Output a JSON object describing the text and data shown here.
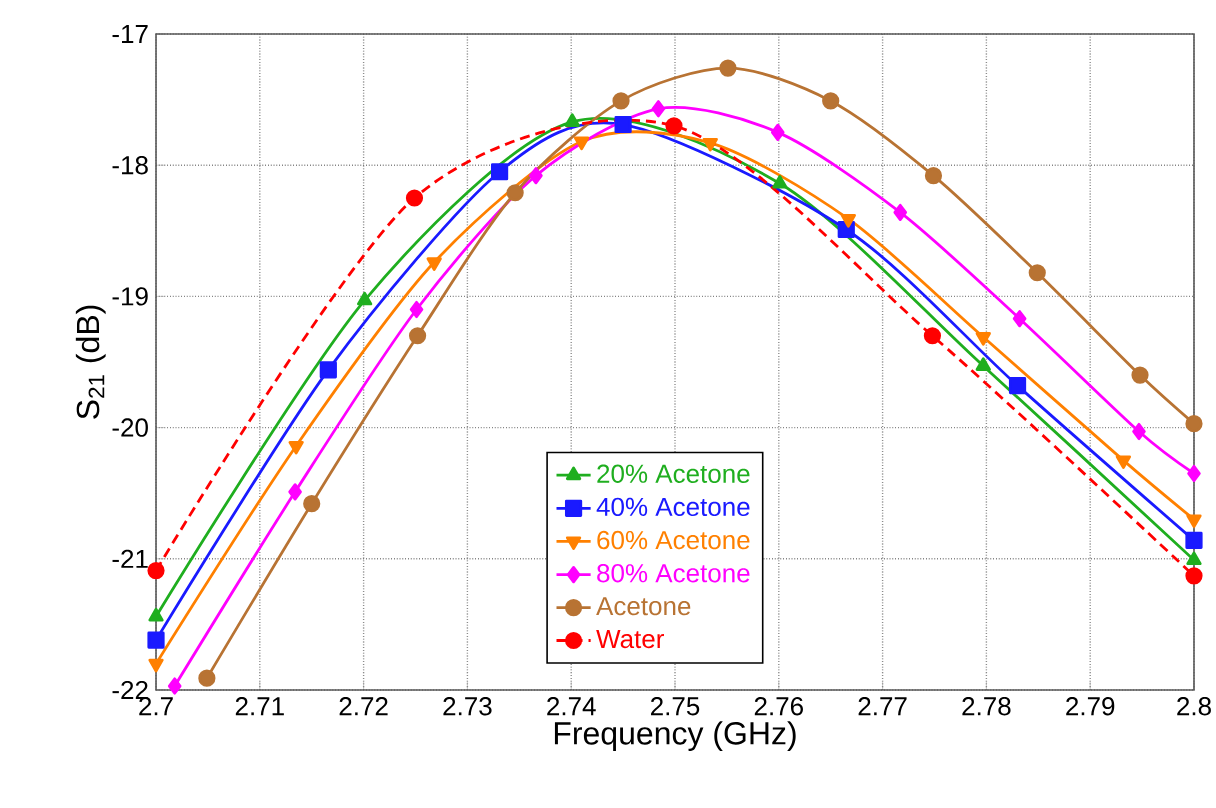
{
  "chart_data": {
    "type": "line",
    "xlabel": "Frequency (GHz)",
    "ylabel": "S$_{21}$ (dB)",
    "xlim": [
      2.7,
      2.8
    ],
    "ylim": [
      -22,
      -17
    ],
    "xticks": [
      {
        "value": 2.7,
        "label": "2.7"
      },
      2.71,
      2.72,
      2.73,
      2.74,
      2.75,
      2.76,
      2.77,
      2.78,
      2.79,
      {
        "value": 2.8,
        "label": "2.8"
      }
    ],
    "yticks": [
      -22,
      -21,
      -20,
      -19,
      -18,
      -17
    ],
    "grid": true,
    "legend": "bottom",
    "line_style": "solid",
    "series": [
      {
        "name": "20% Acetone",
        "color": "#1fae1f",
        "marker": "triangle",
        "x": [
          2.7,
          2.7201,
          2.7401,
          2.7601,
          2.7797,
          2.8
        ],
        "values": [
          -21.44,
          -19.03,
          -17.67,
          -18.14,
          -19.53,
          -21.01
        ]
      },
      {
        "name": "40% Acetone",
        "color": "#1a1aff",
        "marker": "square",
        "x": [
          2.7,
          2.7166,
          2.7331,
          2.745,
          2.7665,
          2.783,
          2.8
        ],
        "values": [
          -21.62,
          -19.56,
          -18.05,
          -17.69,
          -18.49,
          -19.68,
          -20.86
        ]
      },
      {
        "name": "60% Acetone",
        "color": "#ff8000",
        "marker": "triangle down",
        "x": [
          2.7,
          2.7135,
          2.7268,
          2.741,
          2.7534,
          2.7667,
          2.7797,
          2.7932,
          2.8
        ],
        "values": [
          -21.8,
          -20.14,
          -18.74,
          -17.82,
          -17.83,
          -18.41,
          -19.31,
          -20.25,
          -20.7
        ]
      },
      {
        "name": "80% Acetone",
        "color": "#ff00ff",
        "marker": "diamond",
        "x": [
          2.7018,
          2.7134,
          2.7251,
          2.7366,
          2.7484,
          2.7599,
          2.7717,
          2.7832,
          2.7947,
          2.8
        ],
        "values": [
          -21.97,
          -20.49,
          -19.1,
          -18.08,
          -17.57,
          -17.75,
          -18.36,
          -19.17,
          -20.03,
          -20.35
        ]
      },
      {
        "name": "Acetone",
        "color": "#b87333",
        "marker": "circle",
        "x": [
          2.7049,
          2.715,
          2.7252,
          2.7346,
          2.7448,
          2.7551,
          2.765,
          2.7749,
          2.7849,
          2.7948,
          2.8
        ],
        "values": [
          -21.91,
          -20.58,
          -19.3,
          -18.21,
          -17.51,
          -17.26,
          -17.51,
          -18.08,
          -18.82,
          -19.6,
          -19.97
        ]
      },
      {
        "name": "Water",
        "color": "#ff0000",
        "marker": "circle",
        "line_style": "dashed",
        "x": [
          2.7,
          2.7249,
          2.7499,
          2.7748,
          2.8
        ],
        "values": [
          -21.09,
          -18.25,
          -17.7,
          -19.3,
          -21.13
        ]
      }
    ]
  }
}
